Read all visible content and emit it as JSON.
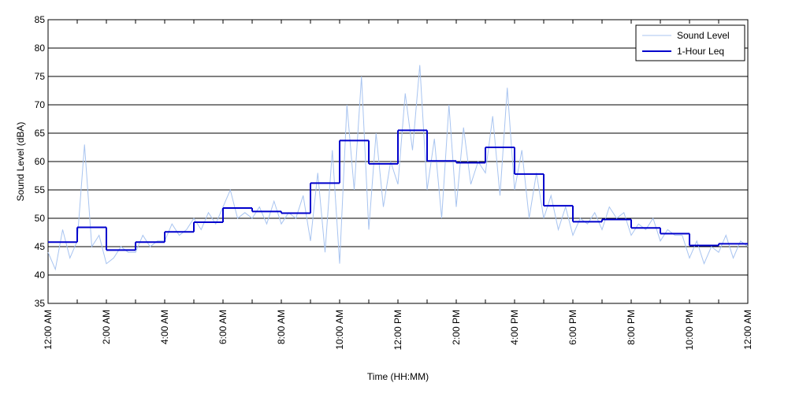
{
  "chart_data": {
    "type": "line",
    "xlabel": "Time (HH:MM)",
    "ylabel": "Sound Level (dBA)",
    "xlim": [
      0,
      24
    ],
    "xticks": [
      {
        "value": 0,
        "label": "12:00 AM"
      },
      {
        "value": 2,
        "label": "2:00 AM"
      },
      {
        "value": 4,
        "label": "4:00 AM"
      },
      {
        "value": 6,
        "label": "6:00 AM"
      },
      {
        "value": 8,
        "label": "8:00 AM"
      },
      {
        "value": 10,
        "label": "10:00 AM"
      },
      {
        "value": 12,
        "label": "12:00 PM"
      },
      {
        "value": 14,
        "label": "2:00 PM"
      },
      {
        "value": 16,
        "label": "4:00 PM"
      },
      {
        "value": 18,
        "label": "6:00 PM"
      },
      {
        "value": 20,
        "label": "8:00 PM"
      },
      {
        "value": 22,
        "label": "10:00 PM"
      },
      {
        "value": 24,
        "label": "12:00 AM"
      }
    ],
    "xminorticks": [
      1,
      3,
      5,
      7,
      9,
      11,
      13,
      15,
      17,
      19,
      21,
      23
    ],
    "ylim": [
      35,
      85
    ],
    "yticks": [
      35,
      40,
      45,
      50,
      55,
      60,
      65,
      70,
      75,
      80,
      85
    ],
    "grid": true,
    "legend": "upper right",
    "series": [
      {
        "name": "Sound Level",
        "color": "#a8c4f0",
        "step": false,
        "x": [
          0,
          0.25,
          0.5,
          0.75,
          1,
          1.25,
          1.5,
          1.75,
          2,
          2.25,
          2.5,
          2.75,
          3,
          3.25,
          3.5,
          3.75,
          4,
          4.25,
          4.5,
          4.75,
          5,
          5.25,
          5.5,
          5.75,
          6,
          6.25,
          6.5,
          6.75,
          7,
          7.25,
          7.5,
          7.75,
          8,
          8.25,
          8.5,
          8.75,
          9,
          9.25,
          9.5,
          9.75,
          10,
          10.25,
          10.5,
          10.75,
          11,
          11.25,
          11.5,
          11.75,
          12,
          12.25,
          12.5,
          12.75,
          13,
          13.25,
          13.5,
          13.75,
          14,
          14.25,
          14.5,
          14.75,
          15,
          15.25,
          15.5,
          15.75,
          16,
          16.25,
          16.5,
          16.75,
          17,
          17.25,
          17.5,
          17.75,
          18,
          18.25,
          18.5,
          18.75,
          19,
          19.25,
          19.5,
          19.75,
          20,
          20.25,
          20.5,
          20.75,
          21,
          21.25,
          21.5,
          21.75,
          22,
          22.25,
          22.5,
          22.75,
          23,
          23.25,
          23.5,
          23.75,
          24
        ],
        "values": [
          44,
          41,
          48,
          43,
          46,
          63,
          45,
          47,
          42,
          43,
          45,
          44,
          44,
          47,
          45,
          46,
          46,
          49,
          47,
          48,
          50,
          48,
          51,
          49,
          52,
          55,
          50,
          51,
          50,
          52,
          49,
          53,
          49,
          51,
          50,
          54,
          46,
          58,
          44,
          62,
          42,
          70,
          55,
          75,
          48,
          65,
          52,
          60,
          56,
          72,
          62,
          77,
          55,
          64,
          50,
          70,
          52,
          66,
          56,
          60,
          58,
          68,
          54,
          73,
          55,
          62,
          50,
          58,
          50,
          54,
          48,
          52,
          47,
          50,
          49,
          51,
          48,
          52,
          50,
          51,
          47,
          49,
          48,
          50,
          46,
          48,
          47,
          47,
          43,
          46,
          42,
          45,
          44,
          47,
          43,
          46,
          45
        ]
      },
      {
        "name": "1-Hour Leq",
        "color": "#0000cc",
        "step": true,
        "x": [
          0,
          1,
          2,
          3,
          4,
          5,
          6,
          7,
          8,
          9,
          10,
          11,
          12,
          13,
          14,
          15,
          16,
          17,
          18,
          19,
          20,
          21,
          22,
          23
        ],
        "values": [
          45.8,
          48.4,
          44.4,
          45.8,
          47.6,
          49.3,
          51.8,
          51.2,
          50.9,
          56.2,
          63.7,
          59.6,
          65.5,
          60.1,
          59.8,
          62.5,
          57.8,
          52.2,
          49.4,
          49.8,
          48.3,
          47.3,
          45.2,
          45.5
        ]
      }
    ]
  }
}
